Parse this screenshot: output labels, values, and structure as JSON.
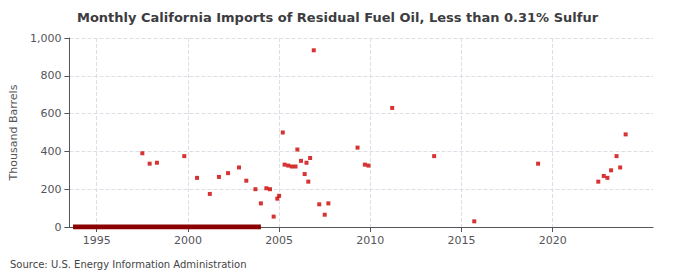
{
  "chart_data": {
    "type": "scatter",
    "title": "Monthly California Imports of Residual Fuel Oil, Less than 0.31% Sulfur",
    "ylabel": "Thousand Barrels",
    "annotation": "Source: U.S. Energy Information Administration",
    "xlim": [
      1993.5,
      2025.5
    ],
    "xticks": [
      1995,
      2000,
      2005,
      2010,
      2015,
      2020
    ],
    "ylim": [
      0,
      1000
    ],
    "yticks": [
      0,
      200,
      400,
      600,
      800,
      {
        "value": 1000,
        "label": "1,000"
      }
    ],
    "grid": true,
    "series": [
      {
        "type": "line",
        "color": "#8b0000",
        "line_style": "solid",
        "x": [
          1993.7,
          2004.0
        ],
        "values": [
          0,
          0
        ]
      },
      {
        "type": "scatter",
        "color": "#cc0000",
        "marker": "square",
        "x": [
          1997.5,
          1997.9,
          1998.3,
          1999.8,
          2000.5,
          2001.2,
          2001.7,
          2002.2,
          2002.8,
          2003.2,
          2003.7,
          2004.0,
          2004.3,
          2004.5,
          2004.7,
          2004.9,
          2005.0,
          2005.2,
          2005.3,
          2005.5,
          2005.7,
          2005.9,
          2006.0,
          2006.2,
          2006.4,
          2006.5,
          2006.6,
          2006.7,
          2006.9,
          2007.2,
          2007.5,
          2007.7,
          2009.3,
          2009.7,
          2009.9,
          2011.2,
          2013.5,
          2015.7,
          2019.2,
          2022.5,
          2022.8,
          2023.0,
          2023.2,
          2023.5,
          2023.7,
          2024.0
        ],
        "values": [
          390,
          335,
          340,
          375,
          260,
          175,
          265,
          285,
          315,
          245,
          200,
          125,
          205,
          200,
          55,
          150,
          165,
          500,
          330,
          325,
          320,
          320,
          410,
          350,
          280,
          340,
          240,
          365,
          935,
          120,
          65,
          125,
          420,
          330,
          325,
          630,
          375,
          30,
          335,
          240,
          270,
          260,
          300,
          375,
          315,
          490
        ]
      }
    ]
  }
}
